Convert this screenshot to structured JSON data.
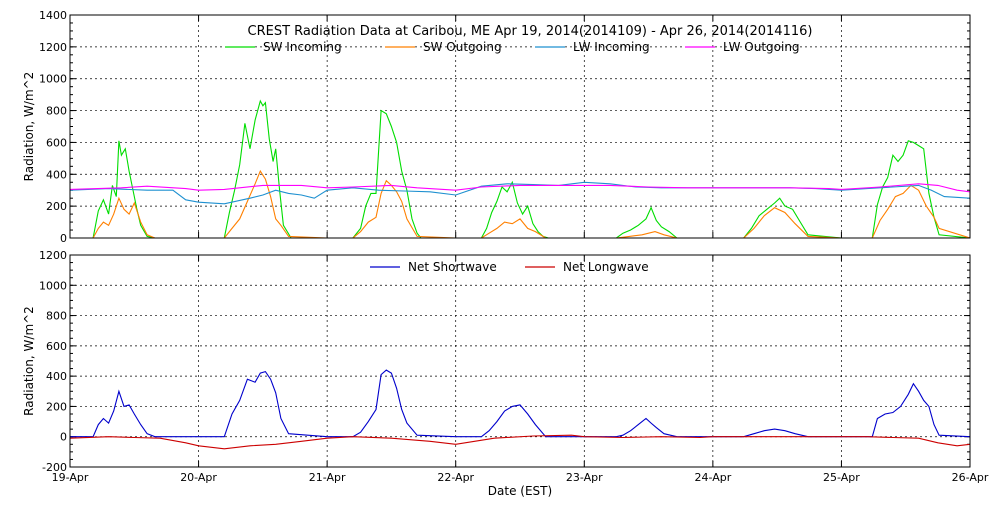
{
  "title": "CREST Radiation Data at Caribou, ME   Apr 19, 2014(2014109) - Apr 26, 2014(2014116)",
  "xlabel": "Date (EST)",
  "chart_data": [
    {
      "type": "line",
      "title": "CREST Radiation Data at Caribou, ME   Apr 19, 2014(2014109) - Apr 26, 2014(2014116)",
      "ylabel": "Radiation, W/m^2",
      "xlabel": "",
      "ylim": [
        0,
        1400
      ],
      "yticks": [
        "0",
        "200",
        "400",
        "600",
        "800",
        "1000",
        "1200",
        "1400"
      ],
      "xlim": [
        0,
        7
      ],
      "grid": true,
      "legend_position": "top",
      "series": [
        {
          "name": "SW Incoming",
          "color": "#00dd00",
          "x": [
            0,
            0.18,
            0.22,
            0.26,
            0.3,
            0.33,
            0.36,
            0.38,
            0.4,
            0.43,
            0.46,
            0.49,
            0.52,
            0.55,
            0.6,
            0.66,
            1,
            1.2,
            1.24,
            1.28,
            1.32,
            1.36,
            1.4,
            1.44,
            1.48,
            1.5,
            1.52,
            1.55,
            1.58,
            1.6,
            1.63,
            1.66,
            1.72,
            2,
            2.2,
            2.26,
            2.3,
            2.34,
            2.38,
            2.42,
            2.46,
            2.5,
            2.54,
            2.58,
            2.62,
            2.66,
            2.7,
            2.73,
            3,
            3.2,
            3.24,
            3.28,
            3.32,
            3.36,
            3.4,
            3.44,
            3.48,
            3.52,
            3.56,
            3.6,
            3.64,
            3.68,
            3.72,
            4,
            4.25,
            4.3,
            4.36,
            4.42,
            4.48,
            4.52,
            4.56,
            4.6,
            4.66,
            4.72,
            5,
            5.24,
            5.3,
            5.36,
            5.42,
            5.48,
            5.52,
            5.56,
            5.62,
            5.68,
            5.74,
            6,
            6.24,
            6.28,
            6.32,
            6.36,
            6.4,
            6.44,
            6.48,
            6.52,
            6.56,
            6.6,
            6.64,
            6.68,
            6.72,
            6.76,
            7
          ],
          "values": [
            0,
            0,
            170,
            240,
            150,
            330,
            260,
            610,
            520,
            560,
            420,
            300,
            180,
            80,
            10,
            0,
            0,
            0,
            160,
            300,
            460,
            720,
            560,
            740,
            860,
            830,
            850,
            620,
            480,
            560,
            300,
            80,
            0,
            0,
            0,
            60,
            200,
            280,
            280,
            800,
            780,
            700,
            600,
            420,
            300,
            120,
            30,
            0,
            0,
            0,
            60,
            160,
            230,
            320,
            290,
            350,
            220,
            150,
            200,
            90,
            40,
            10,
            0,
            0,
            0,
            30,
            50,
            80,
            120,
            190,
            110,
            70,
            40,
            0,
            0,
            0,
            60,
            140,
            180,
            220,
            250,
            200,
            180,
            100,
            20,
            0,
            0,
            210,
            320,
            380,
            520,
            480,
            520,
            610,
            600,
            580,
            560,
            280,
            130,
            20,
            0
          ]
        },
        {
          "name": "SW Outgoing",
          "color": "#ff8000",
          "x": [
            0,
            0.18,
            0.22,
            0.26,
            0.3,
            0.34,
            0.38,
            0.42,
            0.46,
            0.5,
            0.55,
            0.6,
            0.66,
            1,
            1.2,
            1.26,
            1.32,
            1.38,
            1.44,
            1.48,
            1.52,
            1.56,
            1.6,
            1.64,
            1.7,
            2,
            2.2,
            2.26,
            2.32,
            2.38,
            2.42,
            2.46,
            2.5,
            2.54,
            2.58,
            2.62,
            2.7,
            3,
            3.2,
            3.26,
            3.32,
            3.38,
            3.44,
            3.5,
            3.56,
            3.62,
            3.7,
            4,
            4.25,
            4.35,
            4.45,
            4.55,
            4.62,
            4.72,
            5,
            5.24,
            5.32,
            5.4,
            5.48,
            5.56,
            5.64,
            5.74,
            6,
            6.24,
            6.3,
            6.36,
            6.42,
            6.48,
            6.54,
            6.6,
            6.66,
            6.72,
            6.76,
            7
          ],
          "values": [
            0,
            0,
            60,
            100,
            80,
            150,
            250,
            180,
            150,
            220,
            100,
            20,
            0,
            0,
            0,
            60,
            120,
            230,
            340,
            420,
            370,
            260,
            120,
            80,
            10,
            0,
            0,
            40,
            100,
            130,
            280,
            360,
            330,
            290,
            230,
            120,
            10,
            0,
            0,
            30,
            60,
            100,
            90,
            120,
            60,
            40,
            0,
            0,
            0,
            10,
            20,
            40,
            20,
            0,
            0,
            0,
            60,
            140,
            190,
            160,
            90,
            10,
            0,
            0,
            110,
            180,
            260,
            280,
            330,
            300,
            200,
            130,
            60,
            0
          ]
        },
        {
          "name": "LW Incoming",
          "color": "#1e90d0",
          "x": [
            0,
            0.3,
            0.6,
            0.8,
            0.9,
            1,
            1.2,
            1.4,
            1.5,
            1.6,
            1.7,
            1.8,
            1.9,
            2,
            2.2,
            2.4,
            2.6,
            2.8,
            3,
            3.2,
            3.4,
            3.6,
            3.8,
            4,
            4.2,
            4.4,
            4.6,
            4.8,
            5,
            5.2,
            5.4,
            5.6,
            5.8,
            6,
            6.2,
            6.4,
            6.6,
            6.7,
            6.8,
            7
          ],
          "values": [
            300,
            310,
            300,
            300,
            240,
            225,
            215,
            250,
            270,
            300,
            280,
            270,
            250,
            300,
            315,
            300,
            295,
            290,
            270,
            325,
            340,
            335,
            330,
            350,
            340,
            320,
            315,
            315,
            315,
            315,
            315,
            315,
            310,
            300,
            310,
            320,
            330,
            300,
            260,
            250
          ]
        },
        {
          "name": "LW Outgoing",
          "color": "#ff00ff",
          "x": [
            0,
            0.4,
            0.6,
            0.9,
            1,
            1.2,
            1.5,
            1.8,
            2,
            2.2,
            2.5,
            2.7,
            3,
            3.2,
            3.5,
            3.8,
            4,
            4.2,
            4.5,
            4.8,
            5,
            5.3,
            5.6,
            5.9,
            6,
            6.3,
            6.6,
            6.75,
            6.9,
            7
          ],
          "values": [
            305,
            315,
            325,
            310,
            300,
            305,
            330,
            330,
            315,
            320,
            330,
            315,
            300,
            320,
            330,
            330,
            330,
            330,
            320,
            315,
            315,
            315,
            315,
            310,
            305,
            320,
            340,
            330,
            300,
            290
          ]
        }
      ]
    },
    {
      "type": "line",
      "title": "",
      "ylabel": "Radiation, W/m^2",
      "xlabel": "Date (EST)",
      "ylim": [
        -200,
        1200
      ],
      "yticks": [
        "-200",
        "0",
        "200",
        "400",
        "600",
        "800",
        "1000",
        "1200"
      ],
      "xlim": [
        0,
        7
      ],
      "xticks": [
        "19-Apr",
        "20-Apr",
        "21-Apr",
        "22-Apr",
        "23-Apr",
        "24-Apr",
        "25-Apr",
        "26-Apr"
      ],
      "grid": true,
      "legend_position": "top",
      "series": [
        {
          "name": "Net Shortwave",
          "color": "#0000cc",
          "x": [
            0,
            0.18,
            0.22,
            0.26,
            0.3,
            0.34,
            0.38,
            0.42,
            0.46,
            0.5,
            0.55,
            0.6,
            0.66,
            1,
            1.2,
            1.26,
            1.32,
            1.38,
            1.44,
            1.48,
            1.52,
            1.56,
            1.6,
            1.64,
            1.7,
            2,
            2.2,
            2.26,
            2.32,
            2.38,
            2.42,
            2.46,
            2.5,
            2.54,
            2.58,
            2.62,
            2.7,
            3,
            3.2,
            3.26,
            3.32,
            3.38,
            3.44,
            3.5,
            3.56,
            3.62,
            3.7,
            4,
            4.25,
            4.3,
            4.36,
            4.42,
            4.48,
            4.52,
            4.56,
            4.62,
            4.72,
            5,
            5.24,
            5.32,
            5.4,
            5.48,
            5.56,
            5.64,
            5.74,
            6,
            6.24,
            6.28,
            6.34,
            6.4,
            6.46,
            6.52,
            6.56,
            6.6,
            6.64,
            6.68,
            6.72,
            6.76,
            7
          ],
          "values": [
            0,
            0,
            80,
            120,
            90,
            170,
            300,
            200,
            210,
            150,
            80,
            20,
            0,
            0,
            0,
            150,
            240,
            380,
            360,
            420,
            430,
            380,
            290,
            120,
            20,
            0,
            0,
            30,
            100,
            180,
            410,
            440,
            420,
            320,
            180,
            90,
            10,
            0,
            0,
            40,
            100,
            170,
            200,
            210,
            150,
            80,
            0,
            0,
            0,
            10,
            40,
            80,
            120,
            90,
            60,
            20,
            0,
            0,
            0,
            20,
            40,
            50,
            40,
            20,
            0,
            0,
            0,
            120,
            150,
            160,
            200,
            280,
            350,
            300,
            240,
            200,
            80,
            10,
            0
          ]
        },
        {
          "name": "Net Longwave",
          "color": "#cc0000",
          "x": [
            0,
            0.3,
            0.5,
            0.7,
            0.9,
            1,
            1.2,
            1.4,
            1.6,
            1.8,
            2,
            2.2,
            2.5,
            2.8,
            3,
            3.3,
            3.6,
            3.9,
            4,
            4.3,
            4.6,
            4.9,
            5,
            5.3,
            5.6,
            5.9,
            6,
            6.2,
            6.4,
            6.6,
            6.75,
            6.9,
            7
          ],
          "values": [
            -10,
            0,
            -5,
            -10,
            -40,
            -60,
            -80,
            -60,
            -50,
            -30,
            -10,
            0,
            -10,
            -30,
            -50,
            -10,
            5,
            10,
            0,
            -5,
            0,
            -5,
            0,
            0,
            0,
            0,
            0,
            0,
            -5,
            -10,
            -40,
            -60,
            -50
          ]
        }
      ]
    }
  ]
}
